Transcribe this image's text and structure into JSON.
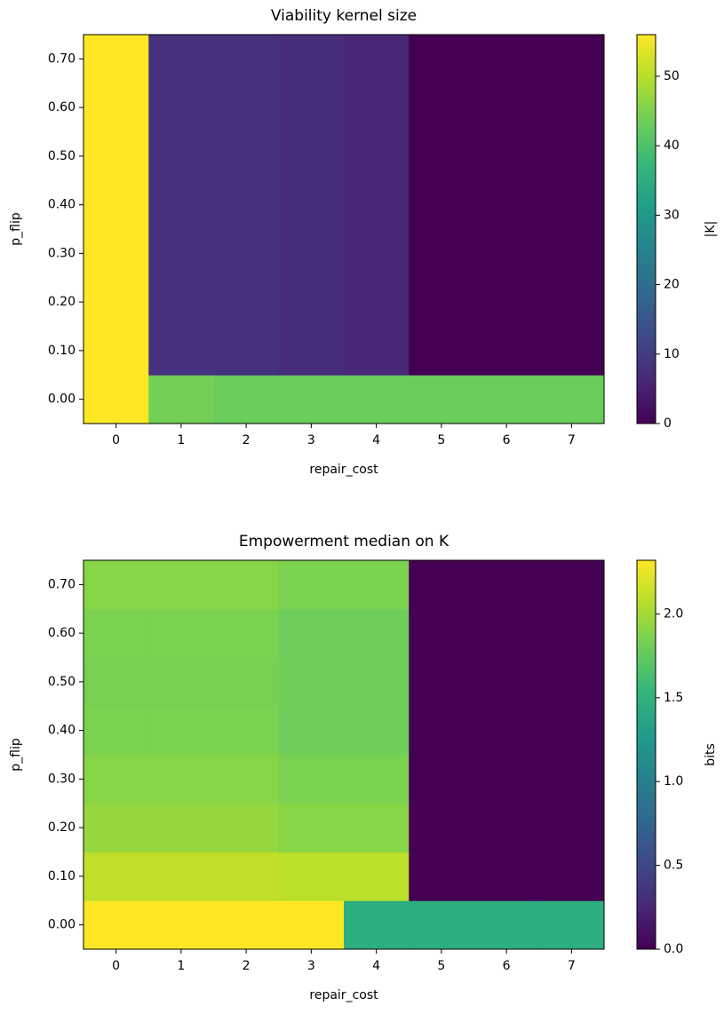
{
  "chart_data": [
    {
      "type": "heatmap",
      "title": "Viability kernel size",
      "xlabel": "repair_cost",
      "ylabel": "p_flip",
      "x": [
        0,
        1,
        2,
        3,
        4,
        5,
        6,
        7
      ],
      "y": [
        "0.00",
        "0.10",
        "0.20",
        "0.30",
        "0.40",
        "0.50",
        "0.60",
        "0.70"
      ],
      "values": [
        [
          56,
          44,
          43,
          43,
          43,
          43,
          43,
          43
        ],
        [
          56,
          8,
          8,
          7,
          6,
          0,
          0,
          0
        ],
        [
          56,
          8,
          8,
          7,
          6,
          0,
          0,
          0
        ],
        [
          56,
          8,
          8,
          7,
          6,
          0,
          0,
          0
        ],
        [
          56,
          8,
          8,
          7,
          6,
          0,
          0,
          0
        ],
        [
          56,
          8,
          8,
          7,
          6,
          0,
          0,
          0
        ],
        [
          56,
          8,
          8,
          7,
          6,
          0,
          0,
          0
        ],
        [
          56,
          8,
          8,
          7,
          6,
          0,
          0,
          0
        ]
      ],
      "colormap": "viridis",
      "zlim": [
        0,
        56
      ],
      "colorbar_label": "|K|",
      "colorbar_ticks": [
        0,
        10,
        20,
        30,
        40,
        50
      ]
    },
    {
      "type": "heatmap",
      "title": "Empowerment median on K",
      "xlabel": "repair_cost",
      "ylabel": "p_flip",
      "x": [
        0,
        1,
        2,
        3,
        4,
        5,
        6,
        7
      ],
      "y": [
        "0.00",
        "0.10",
        "0.20",
        "0.30",
        "0.40",
        "0.50",
        "0.60",
        "0.70"
      ],
      "values": [
        [
          2.32,
          2.32,
          2.32,
          2.32,
          1.45,
          1.45,
          1.45,
          1.45
        ],
        [
          2.1,
          2.1,
          2.1,
          2.08,
          2.08,
          0,
          0,
          0
        ],
        [
          1.95,
          1.95,
          1.95,
          1.9,
          1.9,
          0,
          0,
          0
        ],
        [
          1.9,
          1.9,
          1.9,
          1.85,
          1.85,
          0,
          0,
          0
        ],
        [
          1.85,
          1.85,
          1.85,
          1.8,
          1.8,
          0,
          0,
          0
        ],
        [
          1.84,
          1.84,
          1.84,
          1.8,
          1.8,
          0,
          0,
          0
        ],
        [
          1.85,
          1.85,
          1.85,
          1.8,
          1.8,
          0,
          0,
          0
        ],
        [
          1.9,
          1.9,
          1.9,
          1.85,
          1.85,
          0,
          0,
          0
        ]
      ],
      "colormap": "viridis",
      "zlim": [
        0,
        2.32
      ],
      "colorbar_label": "bits",
      "colorbar_ticks": [
        {
          "value": 0,
          "label": "0.0"
        },
        0.5,
        {
          "value": 1,
          "label": "1.0"
        },
        1.5,
        {
          "value": 2,
          "label": "2.0"
        }
      ]
    }
  ]
}
